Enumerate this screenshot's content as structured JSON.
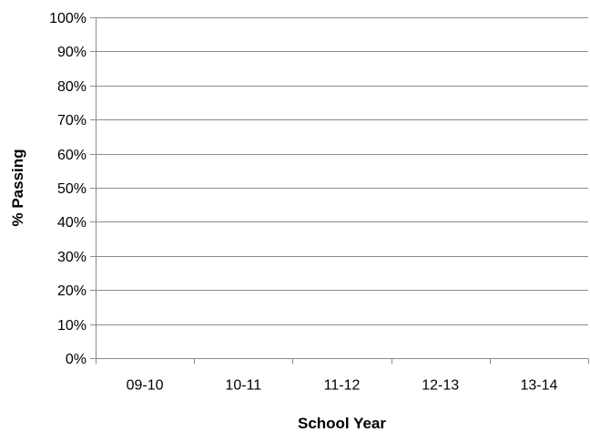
{
  "chart_data": {
    "type": "bar",
    "title": "",
    "xlabel": "School Year",
    "ylabel": "% Passing",
    "categories": [
      "09-10",
      "10-11",
      "11-12",
      "12-13",
      "13-14"
    ],
    "series": [],
    "ylim": [
      0,
      100
    ],
    "y_ticks": [
      0,
      10,
      20,
      30,
      40,
      50,
      60,
      70,
      80,
      90,
      100
    ],
    "y_tick_labels": [
      "0%",
      "10%",
      "20%",
      "30%",
      "40%",
      "50%",
      "60%",
      "70%",
      "80%",
      "90%",
      "100%"
    ],
    "grid": true,
    "legend": "none",
    "colors": {
      "gridline": "#8c8c8c",
      "axis": "#8c8c8c",
      "text": "#000000"
    }
  }
}
